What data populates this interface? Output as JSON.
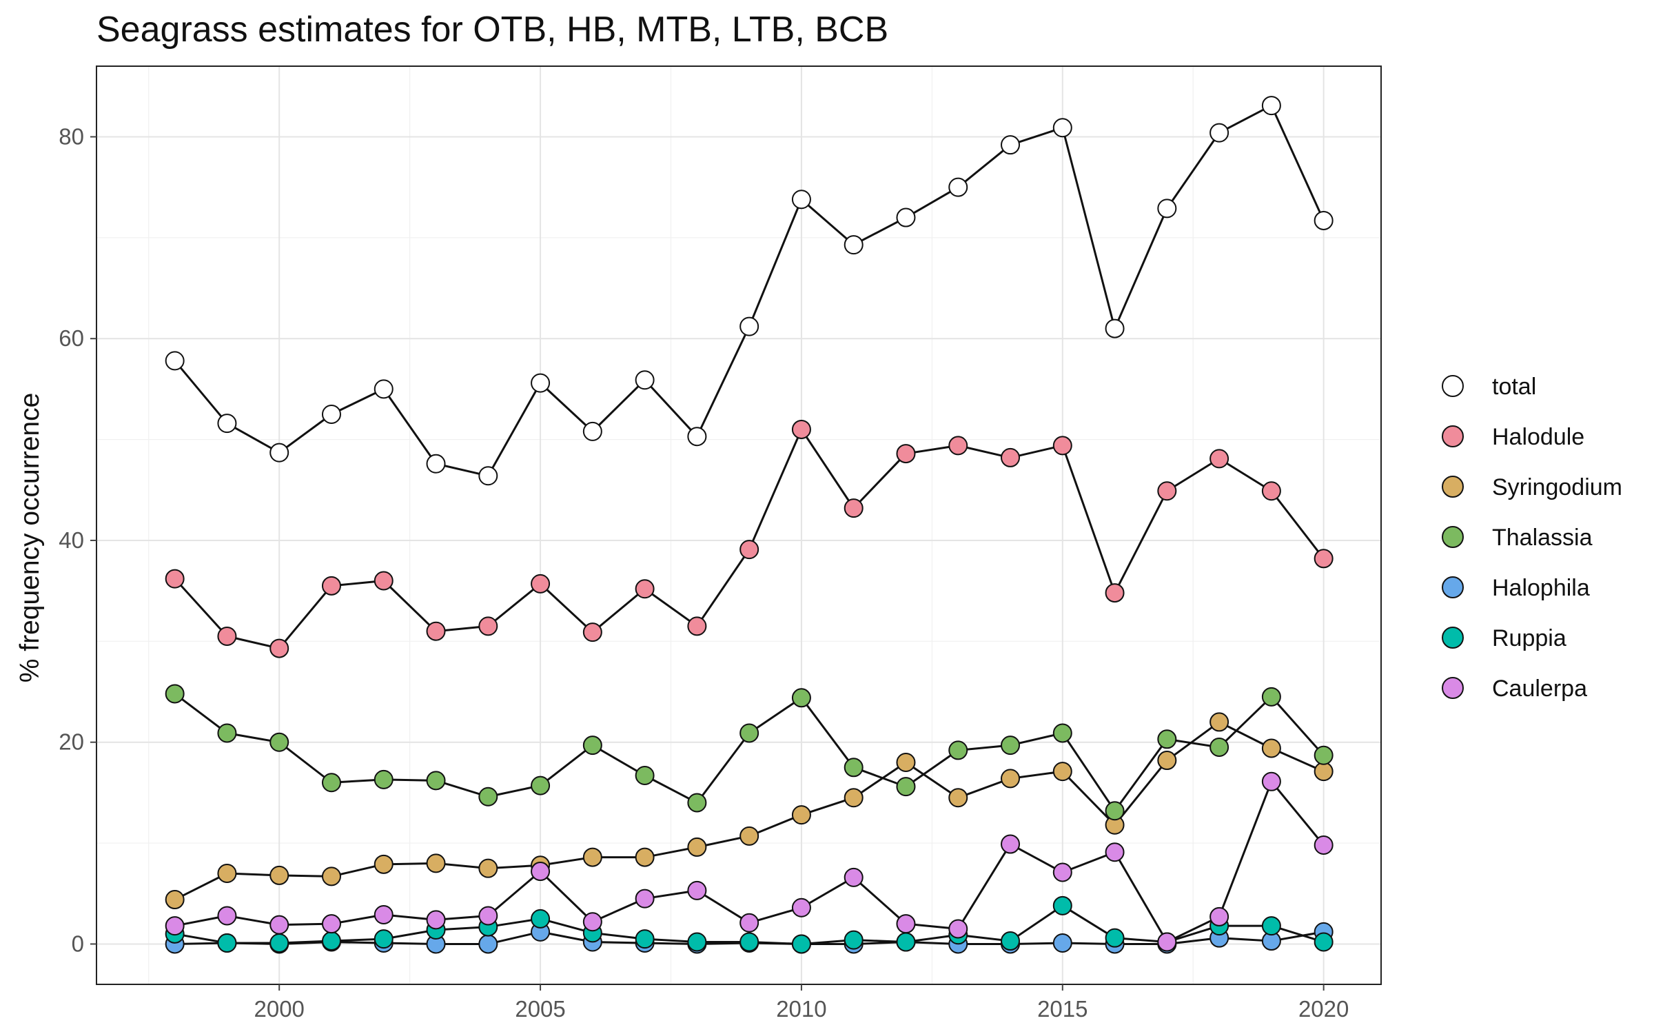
{
  "chart_data": {
    "type": "line",
    "title": "Seagrass estimates for OTB, HB, MTB, LTB, BCB",
    "xlabel": "",
    "ylabel": "% frequency occurrence",
    "xlim": [
      1996.5,
      2021.1
    ],
    "ylim": [
      -4,
      87
    ],
    "xticks": [
      2000,
      2005,
      2010,
      2015,
      2020
    ],
    "yticks": [
      0,
      20,
      40,
      60,
      80
    ],
    "grid": true,
    "legend_position": "right",
    "x": [
      1998,
      1999,
      2000,
      2001,
      2002,
      2003,
      2004,
      2005,
      2006,
      2007,
      2008,
      2009,
      2010,
      2011,
      2012,
      2013,
      2014,
      2015,
      2016,
      2017,
      2018,
      2019,
      2020
    ],
    "series": [
      {
        "name": "total",
        "color": "#ffffff",
        "values": [
          57.8,
          51.6,
          48.7,
          52.5,
          55.0,
          47.6,
          46.4,
          55.6,
          50.8,
          55.9,
          50.3,
          61.2,
          73.8,
          69.3,
          72.0,
          75.0,
          79.2,
          80.9,
          61.0,
          72.9,
          80.4,
          83.1,
          71.7
        ]
      },
      {
        "name": "Halodule",
        "color": "#f08c9b",
        "values": [
          36.2,
          30.5,
          29.3,
          35.5,
          36.0,
          31.0,
          31.5,
          35.7,
          30.9,
          35.2,
          31.5,
          39.1,
          51.0,
          43.2,
          48.6,
          49.4,
          48.2,
          49.4,
          34.8,
          44.9,
          48.1,
          44.9,
          38.2
        ]
      },
      {
        "name": "Syringodium",
        "color": "#d8ae62",
        "values": [
          4.4,
          7.0,
          6.8,
          6.7,
          7.9,
          8.0,
          7.5,
          7.8,
          8.6,
          8.6,
          9.6,
          10.7,
          12.8,
          14.5,
          18.0,
          14.5,
          16.4,
          17.1,
          11.8,
          18.2,
          22.0,
          19.4,
          17.1
        ]
      },
      {
        "name": "Thalassia",
        "color": "#7cba60",
        "values": [
          24.8,
          20.9,
          20.0,
          16.0,
          16.3,
          16.2,
          14.6,
          15.7,
          19.7,
          16.7,
          14.0,
          20.9,
          24.4,
          17.5,
          15.6,
          19.2,
          19.7,
          20.9,
          13.2,
          20.3,
          19.5,
          24.5,
          18.7
        ]
      },
      {
        "name": "Halophila",
        "color": "#66a8ea",
        "values": [
          0.0,
          0.1,
          0.0,
          0.2,
          0.1,
          0.0,
          0.0,
          1.2,
          0.2,
          0.1,
          0.0,
          0.1,
          0.0,
          0.0,
          0.2,
          0.0,
          0.0,
          0.1,
          0.0,
          0.0,
          0.6,
          0.3,
          1.2
        ]
      },
      {
        "name": "Ruppia",
        "color": "#00bcaa",
        "values": [
          1.0,
          0.1,
          0.1,
          0.3,
          0.5,
          1.4,
          1.7,
          2.5,
          1.1,
          0.5,
          0.2,
          0.2,
          0.0,
          0.4,
          0.2,
          0.9,
          0.3,
          3.8,
          0.6,
          0.2,
          1.8,
          1.8,
          0.2
        ]
      },
      {
        "name": "Caulerpa",
        "color": "#d98ae6",
        "values": [
          1.8,
          2.8,
          1.9,
          2.0,
          2.9,
          2.4,
          2.8,
          7.2,
          2.2,
          4.5,
          5.3,
          2.1,
          3.6,
          6.6,
          2.0,
          1.5,
          9.9,
          7.1,
          9.1,
          0.2,
          2.7,
          16.1,
          9.8
        ]
      }
    ]
  }
}
